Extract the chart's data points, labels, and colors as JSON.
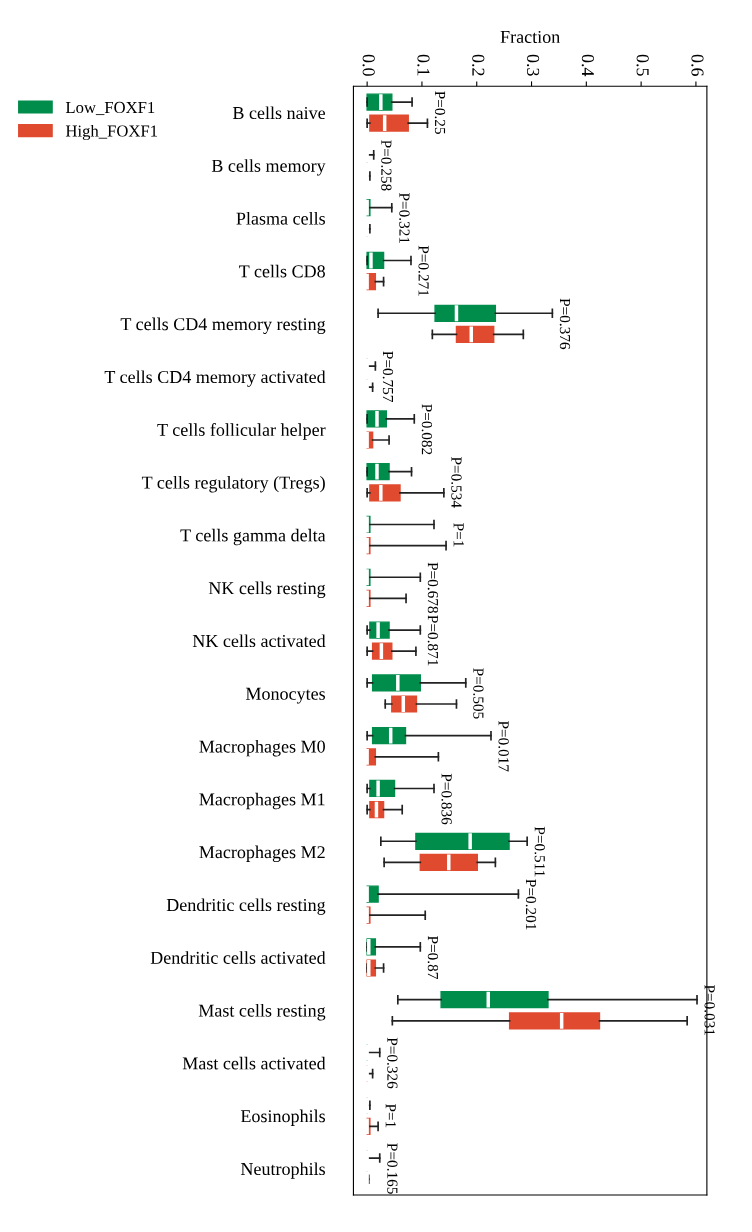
{
  "chart_data": {
    "type": "box",
    "orientation": "horizontal",
    "xlabel": "Fraction",
    "categories": [
      "B cells naive",
      "B cells memory",
      "Plasma cells",
      "T cells CD8",
      "T cells CD4 memory resting",
      "T cells CD4 memory activated",
      "T cells follicular helper",
      "T cells regulatory (Tregs)",
      "T cells gamma delta",
      "NK cells resting",
      "NK cells activated",
      "Monocytes",
      "Macrophages M0",
      "Macrophages M1",
      "Macrophages M2",
      "Dendritic cells resting",
      "Dendritic cells activated",
      "Mast cells resting",
      "Mast cells activated",
      "Eosinophils",
      "Neutrophils"
    ],
    "xlim": [
      -0.025,
      0.62
    ],
    "xticks": [
      {
        "value": 0,
        "label": "0.0"
      },
      0.1,
      0.2,
      0.3,
      0.4,
      0.5,
      0.6
    ],
    "grid": false,
    "legend": "left",
    "series": [
      {
        "name": "Low_FOXF1",
        "color": "#008c4b",
        "boxes": [
          {
            "low": 0,
            "q1": 0,
            "median": 0.025,
            "q3": 0.045,
            "high": 0.082
          },
          {
            "low": 0,
            "q1": 0,
            "median": 0,
            "q3": 0,
            "high": 0.012
          },
          {
            "low": 0,
            "q1": 0,
            "median": 0,
            "q3": 0.005,
            "high": 0.045
          },
          {
            "low": 0,
            "q1": 0,
            "median": 0.007,
            "q3": 0.03,
            "high": 0.08
          },
          {
            "low": 0.02,
            "q1": 0.124,
            "median": 0.163,
            "q3": 0.234,
            "high": 0.338
          },
          {
            "low": 0,
            "q1": 0,
            "median": 0,
            "q3": 0,
            "high": 0.015
          },
          {
            "low": 0,
            "q1": 0,
            "median": 0.018,
            "q3": 0.035,
            "high": 0.086
          },
          {
            "low": 0,
            "q1": 0,
            "median": 0.018,
            "q3": 0.04,
            "high": 0.081
          },
          {
            "low": 0,
            "q1": 0,
            "median": 0,
            "q3": 0.005,
            "high": 0.122
          },
          {
            "low": 0,
            "q1": 0,
            "median": 0,
            "q3": 0.005,
            "high": 0.097
          },
          {
            "low": 0,
            "q1": 0.005,
            "median": 0.02,
            "q3": 0.04,
            "high": 0.097
          },
          {
            "low": 0,
            "q1": 0.01,
            "median": 0.056,
            "q3": 0.097,
            "high": 0.18
          },
          {
            "low": 0,
            "q1": 0.01,
            "median": 0.043,
            "q3": 0.07,
            "high": 0.226
          },
          {
            "low": 0,
            "q1": 0.005,
            "median": 0.02,
            "q3": 0.05,
            "high": 0.122
          },
          {
            "low": 0.025,
            "q1": 0.089,
            "median": 0.188,
            "q3": 0.259,
            "high": 0.292
          },
          {
            "low": 0,
            "q1": 0,
            "median": 0,
            "q3": 0.02,
            "high": 0.276
          },
          {
            "low": 0,
            "q1": 0,
            "median": 0.003,
            "q3": 0.015,
            "high": 0.097
          },
          {
            "low": 0.056,
            "q1": 0.135,
            "median": 0.221,
            "q3": 0.33,
            "high": 0.602
          },
          {
            "low": 0,
            "q1": 0,
            "median": 0,
            "q3": 0,
            "high": 0.023
          },
          {
            "low": 0,
            "q1": 0,
            "median": 0,
            "q3": 0,
            "high": 0.005
          },
          {
            "low": 0,
            "q1": 0,
            "median": 0,
            "q3": 0,
            "high": 0.023
          }
        ]
      },
      {
        "name": "High_FOXF1",
        "color": "#e04a2f",
        "boxes": [
          {
            "low": 0,
            "q1": 0.005,
            "median": 0.032,
            "q3": 0.075,
            "high": 0.11
          },
          {
            "low": 0,
            "q1": 0,
            "median": 0,
            "q3": 0,
            "high": 0.005
          },
          {
            "low": 0,
            "q1": 0,
            "median": 0,
            "q3": 0,
            "high": 0.005
          },
          {
            "low": 0,
            "q1": 0,
            "median": 0,
            "q3": 0.015,
            "high": 0.03
          },
          {
            "low": 0.119,
            "q1": 0.163,
            "median": 0.19,
            "q3": 0.231,
            "high": 0.285
          },
          {
            "low": 0,
            "q1": 0,
            "median": 0,
            "q3": 0,
            "high": 0.01
          },
          {
            "low": 0,
            "q1": 0,
            "median": 0,
            "q3": 0.01,
            "high": 0.04
          },
          {
            "low": 0,
            "q1": 0.005,
            "median": 0.025,
            "q3": 0.06,
            "high": 0.14
          },
          {
            "low": 0,
            "q1": 0,
            "median": 0,
            "q3": 0.005,
            "high": 0.144
          },
          {
            "low": 0,
            "q1": 0,
            "median": 0,
            "q3": 0.005,
            "high": 0.071
          },
          {
            "low": 0,
            "q1": 0.01,
            "median": 0.026,
            "q3": 0.045,
            "high": 0.089
          },
          {
            "low": 0.033,
            "q1": 0.045,
            "median": 0.066,
            "q3": 0.09,
            "high": 0.163
          },
          {
            "low": 0,
            "q1": 0,
            "median": 0,
            "q3": 0.015,
            "high": 0.13
          },
          {
            "low": 0,
            "q1": 0.005,
            "median": 0.017,
            "q3": 0.03,
            "high": 0.064
          },
          {
            "low": 0.031,
            "q1": 0.097,
            "median": 0.149,
            "q3": 0.201,
            "high": 0.234
          },
          {
            "low": 0,
            "q1": 0,
            "median": 0,
            "q3": 0.005,
            "high": 0.106
          },
          {
            "low": 0,
            "q1": 0,
            "median": 0.003,
            "q3": 0.015,
            "high": 0.03
          },
          {
            "low": 0.046,
            "q1": 0.26,
            "median": 0.355,
            "q3": 0.424,
            "high": 0.584
          },
          {
            "low": 0,
            "q1": 0,
            "median": 0,
            "q3": 0,
            "high": 0.01
          },
          {
            "low": 0,
            "q1": 0,
            "median": 0,
            "q3": 0.005,
            "high": 0.02
          },
          {
            "low": 0,
            "q1": 0,
            "median": 0,
            "q3": 0,
            "high": 0.003
          }
        ]
      }
    ],
    "annotations": [
      "P=0.25",
      "P=0.258",
      "P=0.321",
      "P=0.271",
      "P=0.376",
      "P=0.757",
      "P=0.082",
      "P=0.534",
      "P=1",
      "P=0.678",
      "P=0.871",
      "P=0.505",
      "P=0.017",
      "P=0.836",
      "P=0.511",
      "P=0.201",
      "P=0.87",
      "P=0.031",
      "P=0.326",
      "P=1",
      "P=0.165"
    ]
  }
}
